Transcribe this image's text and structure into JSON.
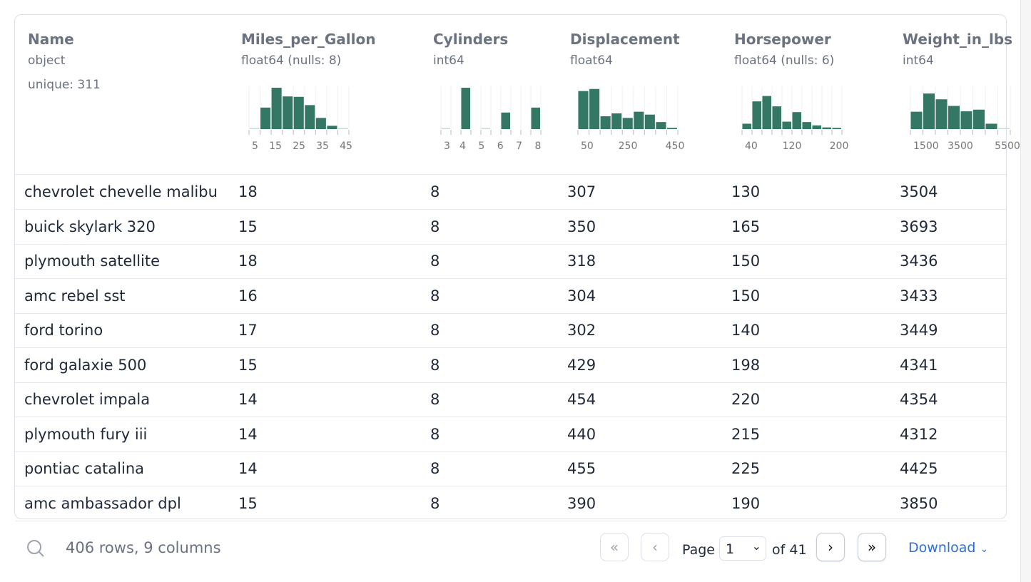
{
  "columns": [
    {
      "name": "Name",
      "type": "object",
      "extra": "unique: 311"
    },
    {
      "name": "Miles_per_Gallon",
      "type": "float64 (nulls: 8)",
      "hist": [
        1,
        52,
        100,
        79,
        78,
        58,
        27,
        8,
        1
      ],
      "ticks": [
        "5",
        "15",
        "25",
        "35",
        "45"
      ]
    },
    {
      "name": "Cylinders",
      "type": "int64",
      "hist": [
        2,
        0,
        100,
        0,
        2,
        0,
        40,
        0,
        0,
        52
      ],
      "ticks": [
        "3",
        "4",
        "5",
        "6",
        "7",
        "8"
      ]
    },
    {
      "name": "Displacement",
      "type": "float64",
      "hist": [
        92,
        97,
        31,
        38,
        27,
        42,
        35,
        17,
        3
      ],
      "ticks": [
        "50",
        "250",
        "450"
      ]
    },
    {
      "name": "Horsepower",
      "type": "float64 (nulls: 6)",
      "hist": [
        13,
        67,
        80,
        55,
        18,
        41,
        17,
        9,
        4,
        3
      ],
      "ticks": [
        "40",
        "120",
        "200"
      ]
    },
    {
      "name": "Weight_in_lbs",
      "type": "int64",
      "hist": [
        42,
        86,
        72,
        56,
        43,
        47,
        13,
        1
      ],
      "ticks": [
        "1500",
        "3500",
        "5500"
      ]
    }
  ],
  "rows": [
    [
      "chevrolet chevelle malibu",
      "18",
      "8",
      "307",
      "130",
      "3504"
    ],
    [
      "buick skylark 320",
      "15",
      "8",
      "350",
      "165",
      "3693"
    ],
    [
      "plymouth satellite",
      "18",
      "8",
      "318",
      "150",
      "3436"
    ],
    [
      "amc rebel sst",
      "16",
      "8",
      "304",
      "150",
      "3433"
    ],
    [
      "ford torino",
      "17",
      "8",
      "302",
      "140",
      "3449"
    ],
    [
      "ford galaxie 500",
      "15",
      "8",
      "429",
      "198",
      "4341"
    ],
    [
      "chevrolet impala",
      "14",
      "8",
      "454",
      "220",
      "4354"
    ],
    [
      "plymouth fury iii",
      "14",
      "8",
      "440",
      "215",
      "4312"
    ],
    [
      "pontiac catalina",
      "14",
      "8",
      "455",
      "225",
      "4425"
    ],
    [
      "amc ambassador dpl",
      "15",
      "8",
      "390",
      "190",
      "3850"
    ]
  ],
  "footer": {
    "summary": "406 rows, 9 columns",
    "page_label": "Page",
    "page_value": "1",
    "of_label": "of 41",
    "download": "Download"
  },
  "colors": {
    "bar": "#347765",
    "link": "#2f6fd6"
  }
}
